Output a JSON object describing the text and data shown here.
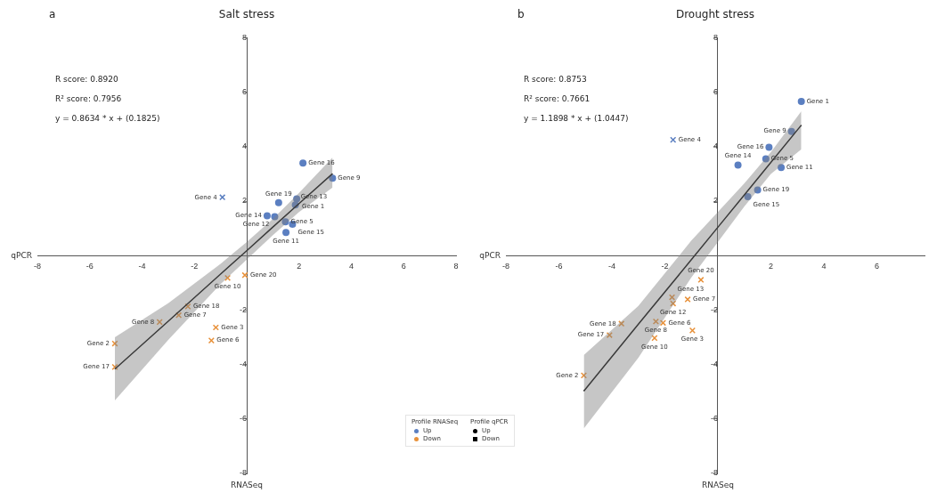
{
  "chart_data": [
    {
      "type": "scatter",
      "title": "Salt stress",
      "xlabel": "RNASeq",
      "ylabel": "qPCR",
      "annotations": [
        "a",
        "R score: 0.8920",
        "R² score: 0.7956",
        "y = 0.8634 * x + (0.1825)"
      ],
      "xlim": [
        -8,
        8
      ],
      "ylim": [
        -8,
        8
      ],
      "xticks": [
        -8,
        -6,
        -4,
        -2,
        2,
        4,
        6,
        8
      ],
      "yticks": [
        -8,
        -6,
        -4,
        -2,
        2,
        4,
        6,
        8
      ],
      "grid": false,
      "legend": false,
      "series": [
        {
          "type": "line",
          "color": "#000000",
          "marker": "none",
          "x": [
            -5.04,
            -3,
            -1,
            0,
            1,
            2,
            3.28
          ],
          "values": [
            -4.17,
            -2.41,
            -0.68,
            0.18,
            1.05,
            1.91,
            3.01
          ],
          "lower": [
            -5.32,
            -3.1,
            -1.05,
            -0.15,
            0.75,
            1.6,
            2.5
          ],
          "upper": [
            -3.0,
            -1.75,
            -0.3,
            0.5,
            1.35,
            2.3,
            3.6
          ]
        },
        {
          "color": "#5b7fc1",
          "marker": "circle",
          "x": [
            2.15,
            3.28,
            1.22,
            1.91,
            1.86,
            0.78,
            1.07,
            1.48,
            1.75,
            1.5
          ],
          "values": [
            3.4,
            2.84,
            1.94,
            2.08,
            1.86,
            1.46,
            1.43,
            1.24,
            1.15,
            0.85
          ],
          "value_labels": [
            "Gene 16",
            "Gene 9",
            "Gene 19",
            "Gene 1",
            "Gene 13",
            "Gene 14",
            "Gene 12",
            "Gene 5",
            "Gene 15",
            "Gene 11"
          ]
        },
        {
          "color": "#5b7fc1",
          "marker": "cross",
          "x": [
            -0.93
          ],
          "values": [
            2.14
          ],
          "value_labels": [
            "Gene 4"
          ]
        },
        {
          "color": "#e8913a",
          "marker": "cross",
          "x": [
            -0.07,
            -0.73,
            -2.25,
            -3.33,
            -2.6,
            -1.18,
            -1.35,
            -5.04,
            -5.04
          ],
          "values": [
            -0.72,
            -0.82,
            -1.87,
            -2.44,
            -2.19,
            -2.64,
            -3.12,
            -3.23,
            -4.09
          ],
          "value_labels": [
            "Gene 20",
            "Gene 10",
            "Gene 18",
            "Gene 8",
            "Gene 7",
            "Gene 3",
            "Gene 6",
            "Gene 2",
            "Gene 17"
          ]
        }
      ]
    },
    {
      "type": "scatter",
      "title": "Drought stress",
      "xlabel": "RNASeq",
      "ylabel": "qPCR",
      "annotations": [
        "b",
        "R score: 0.8753",
        "R² score: 0.7661",
        "y = 1.1898 * x + (1.0447)"
      ],
      "xlim": [
        -8,
        7.8
      ],
      "ylim": [
        -8,
        8
      ],
      "xticks": [
        -8,
        -6,
        -4,
        -2,
        2,
        4,
        6
      ],
      "yticks": [
        -8,
        -6,
        -4,
        -2,
        2,
        4,
        6,
        8
      ],
      "grid": false,
      "legend": "bottom left",
      "legend_title": "Profile RNASeq",
      "series": [
        {
          "type": "line",
          "color": "#000000",
          "marker": "none",
          "x": [
            -5.06,
            -3,
            -1,
            0,
            1,
            2,
            3.15
          ],
          "values": [
            -4.98,
            -2.52,
            -0.15,
            1.04,
            2.23,
            3.42,
            4.79
          ],
          "lower": [
            -6.35,
            -3.75,
            -0.8,
            0.5,
            1.8,
            3.0,
            3.9
          ],
          "upper": [
            -3.65,
            -1.85,
            0.55,
            1.6,
            2.65,
            3.8,
            5.3
          ]
        },
        {
          "name": "Up",
          "color": "#5b7fc1",
          "marker": "circle",
          "x": [
            3.15,
            2.78,
            1.93,
            1.81,
            0.76,
            2.39,
            1.5,
            1.13
          ],
          "values": [
            5.66,
            4.56,
            3.98,
            3.55,
            3.32,
            3.23,
            2.41,
            2.16
          ],
          "value_labels": [
            "Gene 1",
            "Gene 9",
            "Gene 16",
            "Gene 5",
            "Gene 14",
            "Gene 11",
            "Gene 19",
            "Gene 15"
          ]
        },
        {
          "color": "#5b7fc1",
          "marker": "cross",
          "x": [
            -1.69
          ],
          "values": [
            4.25
          ],
          "value_labels": [
            "Gene 4"
          ]
        },
        {
          "name": "Down",
          "color": "#e8913a",
          "marker": "cross",
          "x": [
            -0.64,
            -1.73,
            -1.14,
            -1.69,
            -2.34,
            -2.07,
            -3.64,
            -0.96,
            -4.09,
            -2.39,
            -5.06
          ],
          "values": [
            -0.89,
            -1.53,
            -1.61,
            -1.76,
            -2.42,
            -2.47,
            -2.5,
            -2.75,
            -2.92,
            -3.03,
            -4.4
          ],
          "value_labels": [
            "Gene 20",
            "Gene 13",
            "Gene 7",
            "Gene 12",
            "Gene 8",
            "Gene 6",
            "Gene 18",
            "Gene 3",
            "Gene 17",
            "Gene 10",
            "Gene 2"
          ]
        }
      ]
    },
    {
      "type": "other",
      "title": "Profile qPCR",
      "annotations": [
        "Up",
        "Down"
      ]
    }
  ]
}
